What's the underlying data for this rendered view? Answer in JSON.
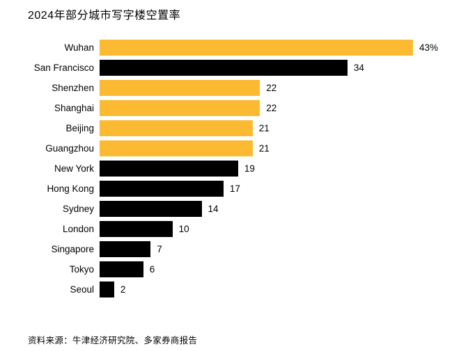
{
  "page": {
    "title": "2024年部分城市写字楼空置率",
    "source": "资料来源：牛津经济研究院、多家券商报告",
    "background_color": "#ffffff"
  },
  "colors": {
    "highlight_bar": "#FCB932",
    "default_bar": "#000000",
    "text": "#000000"
  },
  "chart_data": {
    "type": "bar",
    "orientation": "horizontal",
    "title": "2024年部分城市写字楼空置率",
    "categories": [
      "Wuhan",
      "San Francisco",
      "Shenzhen",
      "Shanghai",
      "Beijing",
      "Guangzhou",
      "New York",
      "Hong Kong",
      "Sydney",
      "London",
      "Singapore",
      "Tokyo",
      "Seoul"
    ],
    "values": [
      43,
      34,
      22,
      22,
      21,
      21,
      19,
      17,
      14,
      10,
      7,
      6,
      2
    ],
    "value_labels": [
      "43%",
      "34",
      "22",
      "22",
      "21",
      "21",
      "19",
      "17",
      "14",
      "10",
      "7",
      "6",
      "2"
    ],
    "bar_colors": [
      "#FCB932",
      "#000000",
      "#FCB932",
      "#FCB932",
      "#FCB932",
      "#FCB932",
      "#000000",
      "#000000",
      "#000000",
      "#000000",
      "#000000",
      "#000000",
      "#000000"
    ],
    "unit": "%",
    "xlim": [
      0,
      43
    ],
    "grid": false,
    "legend": "none",
    "source": "资料来源：牛津经济研究院、多家券商报告"
  }
}
